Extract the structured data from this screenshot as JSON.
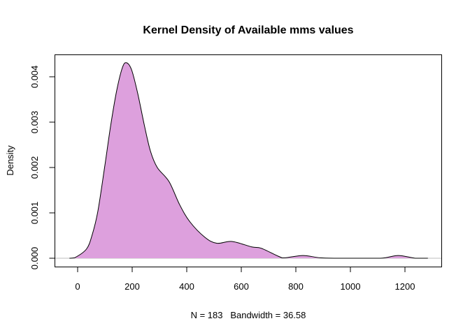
{
  "chart_data": {
    "type": "area",
    "title": "Kernel Density of Available mms values",
    "xlabel": "N = 183   Bandwidth = 36.58",
    "ylabel": "Density",
    "xlim": [
      -90,
      1320
    ],
    "ylim": [
      -0.00018,
      0.00448
    ],
    "x_ticks": [
      0,
      200,
      400,
      600,
      800,
      1000,
      1200
    ],
    "x_tick_labels": [
      "0",
      "200",
      "400",
      "600",
      "800",
      "1000",
      "1200"
    ],
    "y_ticks": [
      0,
      0.001,
      0.002,
      0.003,
      0.004
    ],
    "y_tick_labels": [
      "0.000",
      "0.001",
      "0.002",
      "0.003",
      "0.004"
    ],
    "fill_color": "#DDA0DD",
    "line_color": "#000000",
    "zero_line_color": "#BEBEBE",
    "series": [
      {
        "name": "density",
        "x": [
          -30,
          -11,
          32,
          53,
          74,
          100,
          121,
          143,
          164,
          179,
          198,
          220,
          245,
          267,
          292,
          335,
          374,
          412,
          467,
          510,
          566,
          638,
          673,
          737,
          760,
          826,
          890,
          970,
          1110,
          1175,
          1238,
          1284
        ],
        "y": [
          0,
          1e-05,
          0.0002,
          0.00051,
          0.00103,
          0.00205,
          0.00292,
          0.00369,
          0.0042,
          0.00431,
          0.00415,
          0.00364,
          0.00292,
          0.00236,
          0.002,
          0.00169,
          0.00118,
          0.0008,
          0.00046,
          0.00033,
          0.00037,
          0.00025,
          0.00022,
          4e-05,
          1e-05,
          6e-05,
          1e-05,
          0,
          0,
          6e-05,
          0,
          0
        ]
      }
    ]
  }
}
